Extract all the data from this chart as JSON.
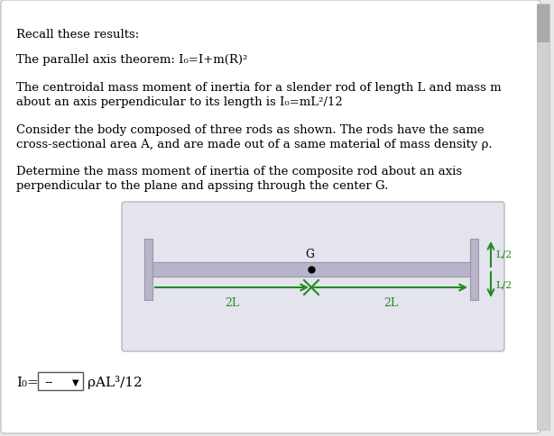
{
  "bg_color": "#e8e8e8",
  "panel_bg": "#ffffff",
  "diagram_bg": "#e4e4ee",
  "green_color": "#228B22",
  "rod_color": "#b8b4cc",
  "rod_edge": "#999999",
  "text_color": "#000000",
  "scrollbar_color": "#d0d0d0",
  "scrollbar_top": "#b0b0b0",
  "title_line": "Recall these results:",
  "line2": "The parallel axis theorem: I₀=I⁣+m(R)²",
  "line3a": "The centroidal mass moment of inertia for a slender rod of length L and mass m",
  "line3b": "about an axis perpendicular to its length is I₀=mL²/12",
  "line4a": "Consider the body composed of three rods as shown. The rods have the same",
  "line4b": "cross-sectional area A, and are made out of a same material of mass density ρ.",
  "line5a": "Determine the mass moment of inertia of the composite rod about an axis",
  "line5b": "perpendicular to the plane and apssing through the center G.",
  "font_size_body": 9.5,
  "font_size_answer": 11
}
